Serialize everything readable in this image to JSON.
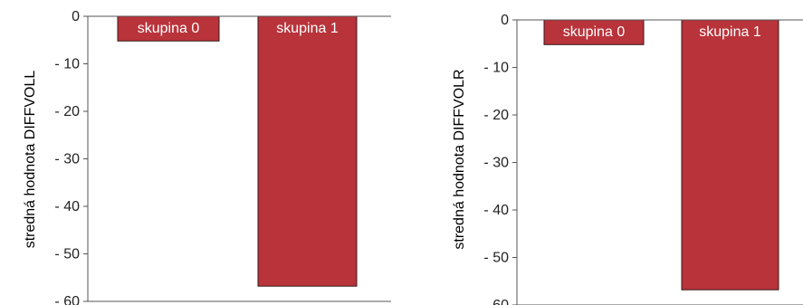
{
  "chart_data": [
    {
      "type": "bar",
      "categories": [
        "skupina 0",
        "skupina 1"
      ],
      "values": [
        -5.2,
        -56.8
      ],
      "ylabel": "stredná hodnota DIFFVOLL",
      "ylim": [
        -60,
        0
      ],
      "yticks": [
        "0",
        "- 10",
        "- 20",
        "- 30",
        "- 40",
        "- 50",
        "- 60"
      ],
      "grid": false,
      "bar_color": "#b8333a"
    },
    {
      "type": "bar",
      "categories": [
        "skupina 0",
        "skupina 1"
      ],
      "values": [
        -5.2,
        -56.8
      ],
      "ylabel": "stredná hodnota DIFFVOLR",
      "ylim": [
        -60,
        0
      ],
      "yticks": [
        "0",
        "- 10",
        "- 20",
        "- 30",
        "- 40",
        "- 50",
        "- 60"
      ],
      "grid": false,
      "bar_color": "#b8333a"
    }
  ]
}
